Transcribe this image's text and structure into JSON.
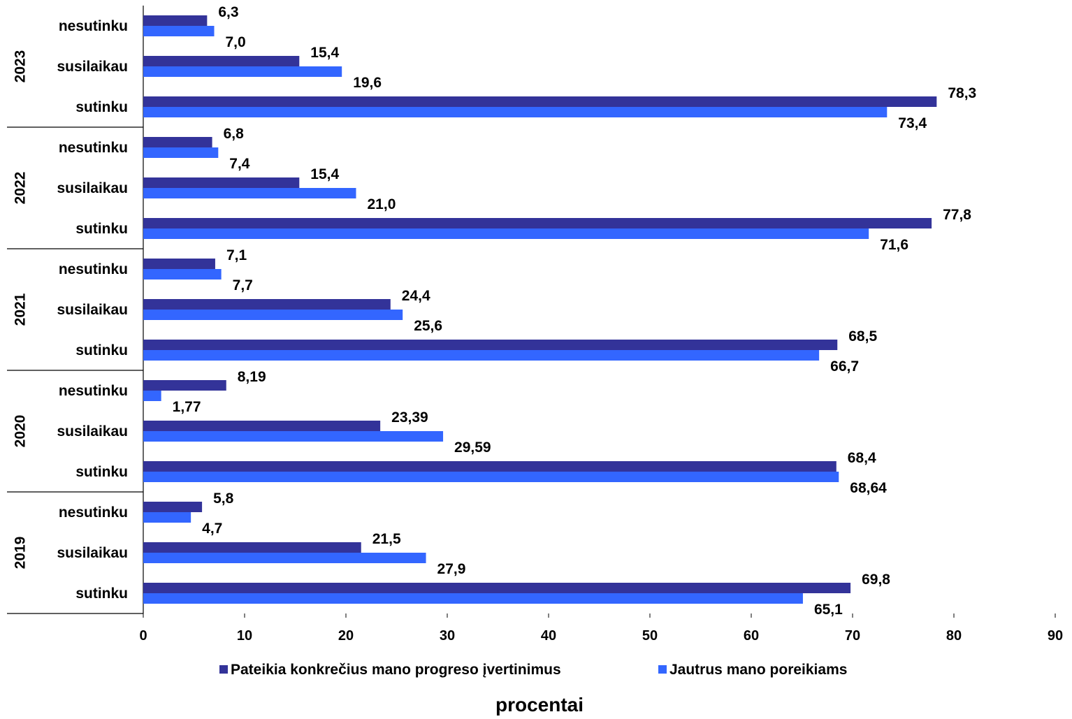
{
  "chart_data": {
    "type": "bar",
    "orientation": "horizontal",
    "groups": [
      "2023",
      "2022",
      "2021",
      "2020",
      "2019"
    ],
    "categories": [
      "nesutinku",
      "susilaikau",
      "sutinku"
    ],
    "series": [
      {
        "name": "Pateikia konkrečius mano  progreso įvertinimus",
        "color": "#333399",
        "values": [
          [
            6.3,
            15.4,
            78.3
          ],
          [
            6.8,
            15.4,
            77.8
          ],
          [
            7.1,
            24.4,
            68.5
          ],
          [
            8.19,
            23.39,
            68.4
          ],
          [
            5.8,
            21.5,
            69.8
          ]
        ],
        "labels": [
          [
            "6,3",
            "15,4",
            "78,3"
          ],
          [
            "6,8",
            "15,4",
            "77,8"
          ],
          [
            "7,1",
            "24,4",
            "68,5"
          ],
          [
            "8,19",
            "23,39",
            "68,4"
          ],
          [
            "5,8",
            "21,5",
            "69,8"
          ]
        ]
      },
      {
        "name": "Jautrus mano poreikiams",
        "color": "#3366ff",
        "values": [
          [
            7.0,
            19.6,
            73.4
          ],
          [
            7.4,
            21.0,
            71.6
          ],
          [
            7.7,
            25.6,
            66.7
          ],
          [
            1.77,
            29.59,
            68.64
          ],
          [
            4.7,
            27.9,
            65.1
          ]
        ],
        "labels": [
          [
            "7,0",
            "19,6",
            "73,4"
          ],
          [
            "7,4",
            "21,0",
            "71,6"
          ],
          [
            "7,7",
            "25,6",
            "66,7"
          ],
          [
            "1,77",
            "29,59",
            "68,64"
          ],
          [
            "4,7",
            "27,9",
            "65,1"
          ]
        ]
      }
    ],
    "xlim": [
      0,
      90
    ],
    "xticks": [
      "0",
      "10",
      "20",
      "30",
      "40",
      "50",
      "60",
      "70",
      "80",
      "90"
    ],
    "xlabel": "procentai",
    "legend_position": "bottom",
    "grid": false
  }
}
